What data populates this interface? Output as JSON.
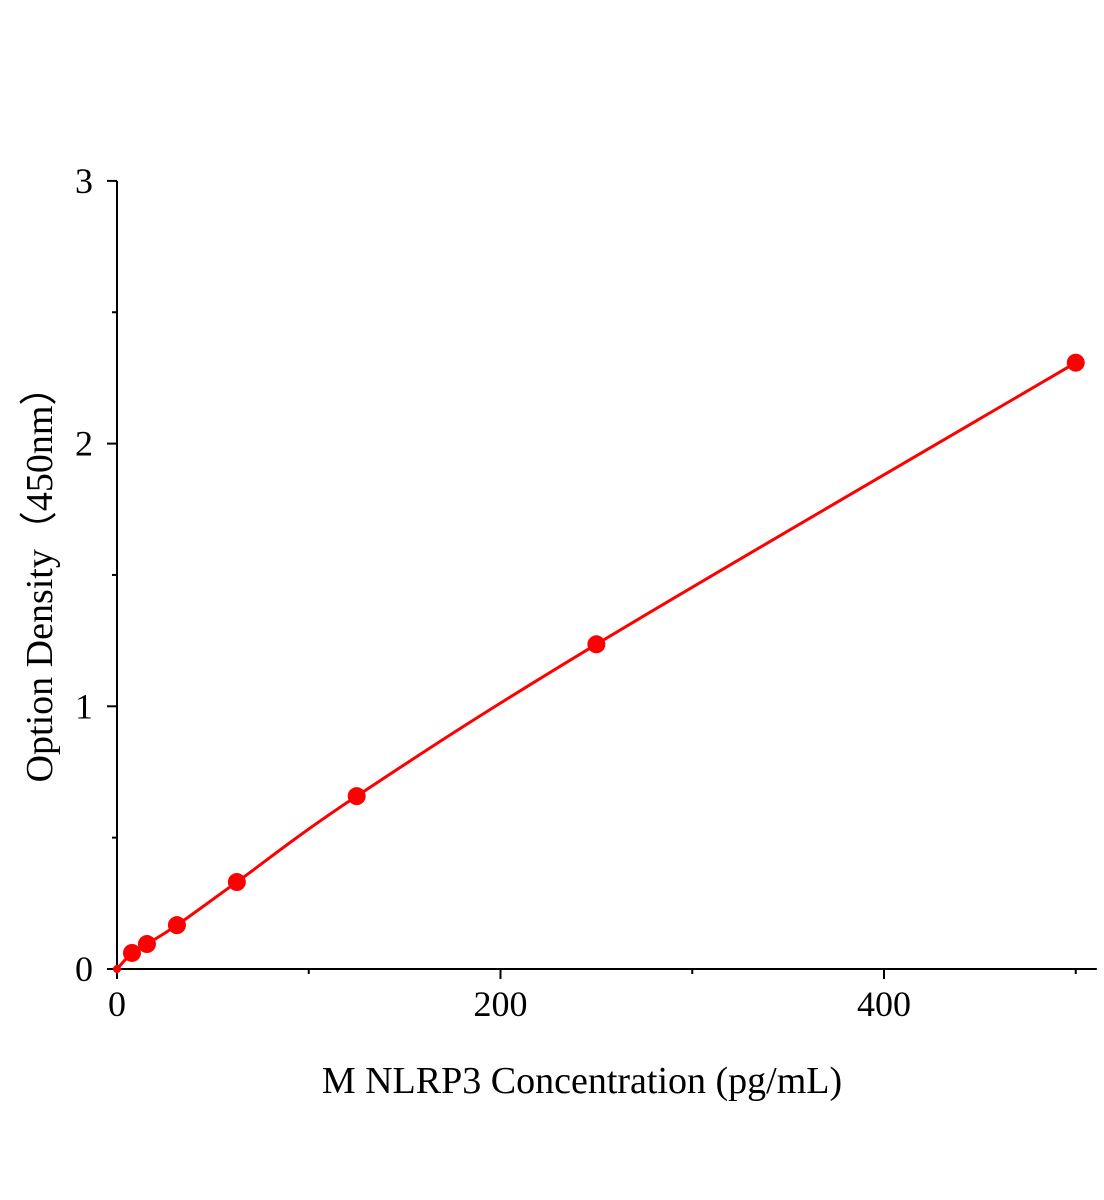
{
  "chart_data": {
    "type": "line",
    "title": "",
    "xlabel": "M NLRP3 Concentration (pg/mL)",
    "ylabel": "Option Density（450nm）",
    "xlim": [
      0,
      511
    ],
    "ylim": [
      0,
      3
    ],
    "x_ticks": [
      0,
      200,
      400
    ],
    "x_minor_ticks": [
      100,
      300,
      500
    ],
    "y_ticks": [
      0,
      1,
      2,
      3
    ],
    "y_minor_ticks": [
      0.5,
      1.5,
      2.5
    ],
    "grid": false,
    "series": [
      {
        "color": "#ff0000",
        "marker": "circle",
        "x": [
          0,
          7.8125,
          15.625,
          31.25,
          62.5,
          125,
          250,
          500
        ],
        "y": [
          0.0,
          0.061,
          0.095,
          0.167,
          0.331,
          0.658,
          1.236,
          2.308
        ]
      }
    ]
  }
}
